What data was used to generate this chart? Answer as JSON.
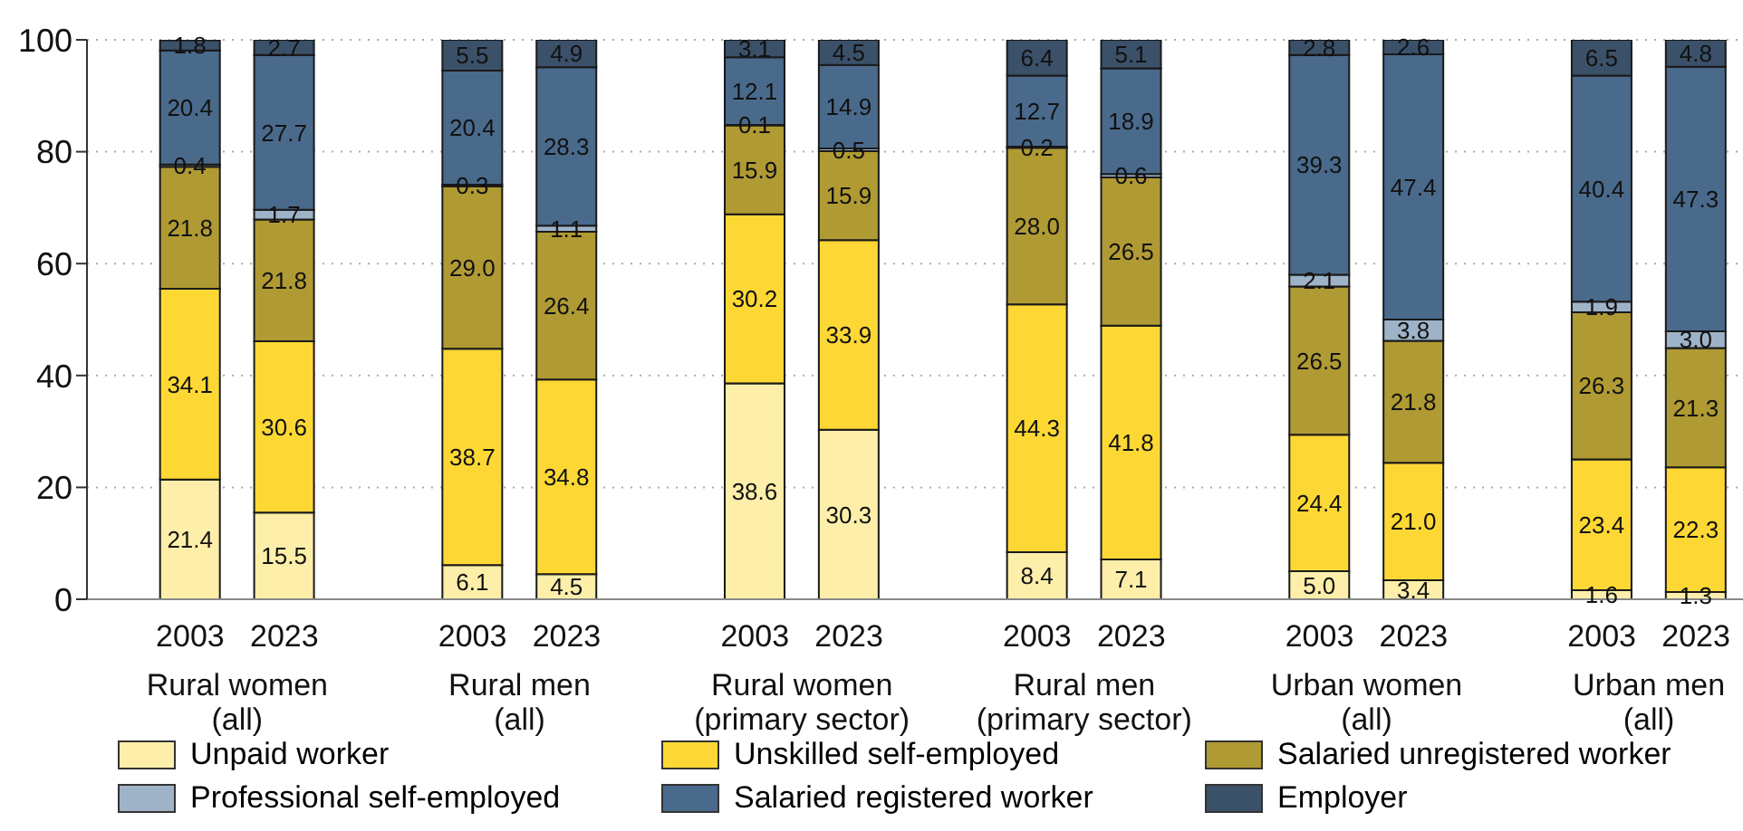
{
  "chart_data": {
    "type": "bar",
    "stacked": true,
    "categories": [
      "2003",
      "2023",
      null,
      "2003",
      "2023",
      null,
      "2003",
      "2023",
      null,
      "2003",
      "2023",
      null,
      "2003",
      "2023",
      null,
      "2003",
      "2023"
    ],
    "series": [
      {
        "name": "Unpaid worker",
        "color": "#fdeeaa",
        "values": [
          21.4,
          15.5,
          null,
          6.1,
          4.5,
          null,
          38.6,
          30.3,
          null,
          8.4,
          7.1,
          null,
          5.0,
          3.4,
          null,
          1.6,
          1.3
        ],
        "value_labels": [
          "21.4",
          "15.5",
          null,
          "6.1",
          "4.5",
          null,
          "38.6",
          "30.3",
          null,
          "8.4",
          "7.1",
          null,
          "5.0",
          "3.4",
          null,
          "1.6",
          "1.3"
        ]
      },
      {
        "name": "Unskilled self-employed",
        "color": "#fdd835",
        "values": [
          34.1,
          30.6,
          null,
          38.7,
          34.8,
          null,
          30.2,
          33.9,
          null,
          44.3,
          41.8,
          null,
          24.4,
          21.0,
          null,
          23.4,
          22.3
        ],
        "value_labels": [
          "34.1",
          "30.6",
          null,
          "38.7",
          "34.8",
          null,
          "30.2",
          "33.9",
          null,
          "44.3",
          "41.8",
          null,
          "24.4",
          "21.0",
          null,
          "23.4",
          "22.3"
        ]
      },
      {
        "name": "Salaried unregistered worker",
        "color": "#b09a33",
        "values": [
          21.8,
          21.8,
          null,
          29.0,
          26.4,
          null,
          15.9,
          15.9,
          null,
          28.0,
          26.5,
          null,
          26.5,
          21.8,
          null,
          26.3,
          21.3
        ],
        "value_labels": [
          "21.8",
          "21.8",
          null,
          "29.0",
          "26.4",
          null,
          "15.9",
          "15.9",
          null,
          "28.0",
          "26.5",
          null,
          "26.5",
          "21.8",
          null,
          "26.3",
          "21.3"
        ]
      },
      {
        "name": "Professional self-employed",
        "color": "#9fb3c8",
        "values": [
          0.4,
          1.7,
          null,
          0.3,
          1.1,
          null,
          0.1,
          0.5,
          null,
          0.2,
          0.6,
          null,
          2.1,
          3.8,
          null,
          1.9,
          3.0
        ],
        "value_labels": [
          "0.4",
          "1.7",
          null,
          "0.3",
          "1.1",
          null,
          "0.1",
          "0.5",
          null,
          "0.2",
          "0.6",
          null,
          "2.1",
          "3.8",
          null,
          "1.9",
          "3.0"
        ]
      },
      {
        "name": "Salaried registered worker",
        "color": "#4a6a8c",
        "values": [
          20.4,
          27.7,
          null,
          20.4,
          28.3,
          null,
          12.1,
          14.9,
          null,
          12.7,
          18.9,
          null,
          39.3,
          47.4,
          null,
          40.4,
          47.3
        ],
        "value_labels": [
          "20.4",
          "27.7",
          null,
          "20.4",
          "28.3",
          null,
          "12.1",
          "14.9",
          null,
          "12.7",
          "18.9",
          null,
          "39.3",
          "47.4",
          null,
          "40.4",
          "47.3"
        ]
      },
      {
        "name": "Employer",
        "color": "#3b5169",
        "values": [
          1.8,
          2.7,
          null,
          5.5,
          4.9,
          null,
          3.1,
          4.5,
          null,
          6.4,
          5.1,
          null,
          2.8,
          2.6,
          null,
          6.5,
          4.8
        ],
        "value_labels": [
          "1.8",
          "2.7",
          null,
          "5.5",
          "4.9",
          null,
          "3.1",
          "4.5",
          null,
          "6.4",
          "5.1",
          null,
          "2.8",
          "2.6",
          null,
          "6.5",
          "4.8"
        ]
      }
    ],
    "annotations": [
      "Rural women\n(all)",
      "Rural men\n(all)",
      "Rural women\n(primary sector)",
      "Rural men\n(primary sector)",
      "Urban women\n(all)",
      "Urban men\n(all)"
    ],
    "ylim": [
      0,
      100
    ],
    "yticks": [
      0,
      20,
      40,
      60,
      80,
      100
    ],
    "grid": "y",
    "legend": "bottom"
  }
}
